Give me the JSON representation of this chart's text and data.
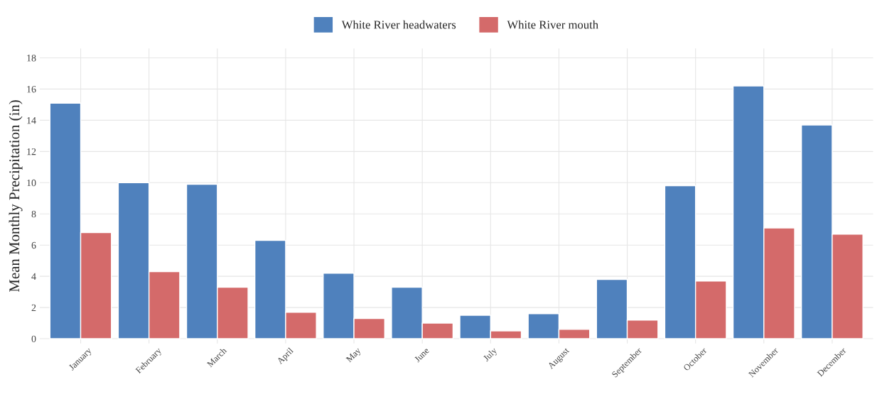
{
  "chart_data": {
    "type": "bar",
    "ylabel": "Mean Monthly Precipitation (in)",
    "categories": [
      "January",
      "February",
      "March",
      "April",
      "May",
      "June",
      "July",
      "August",
      "September",
      "October",
      "November",
      "December"
    ],
    "series": [
      {
        "name": "White River headwaters",
        "color": "#4f81bd",
        "values": [
          15.1,
          10.0,
          9.9,
          6.3,
          4.2,
          3.3,
          1.5,
          1.6,
          3.8,
          9.8,
          16.2,
          13.7
        ]
      },
      {
        "name": "White River mouth",
        "color": "#d46a6a",
        "values": [
          6.8,
          4.3,
          3.3,
          1.7,
          1.3,
          1.0,
          0.5,
          0.6,
          1.2,
          3.7,
          7.1,
          6.7
        ]
      }
    ],
    "ylim": [
      -0.3,
      18.6
    ],
    "yticks": [
      0,
      2,
      4,
      6,
      8,
      10,
      12,
      14,
      16,
      18
    ],
    "grid": true,
    "legend": "top"
  }
}
